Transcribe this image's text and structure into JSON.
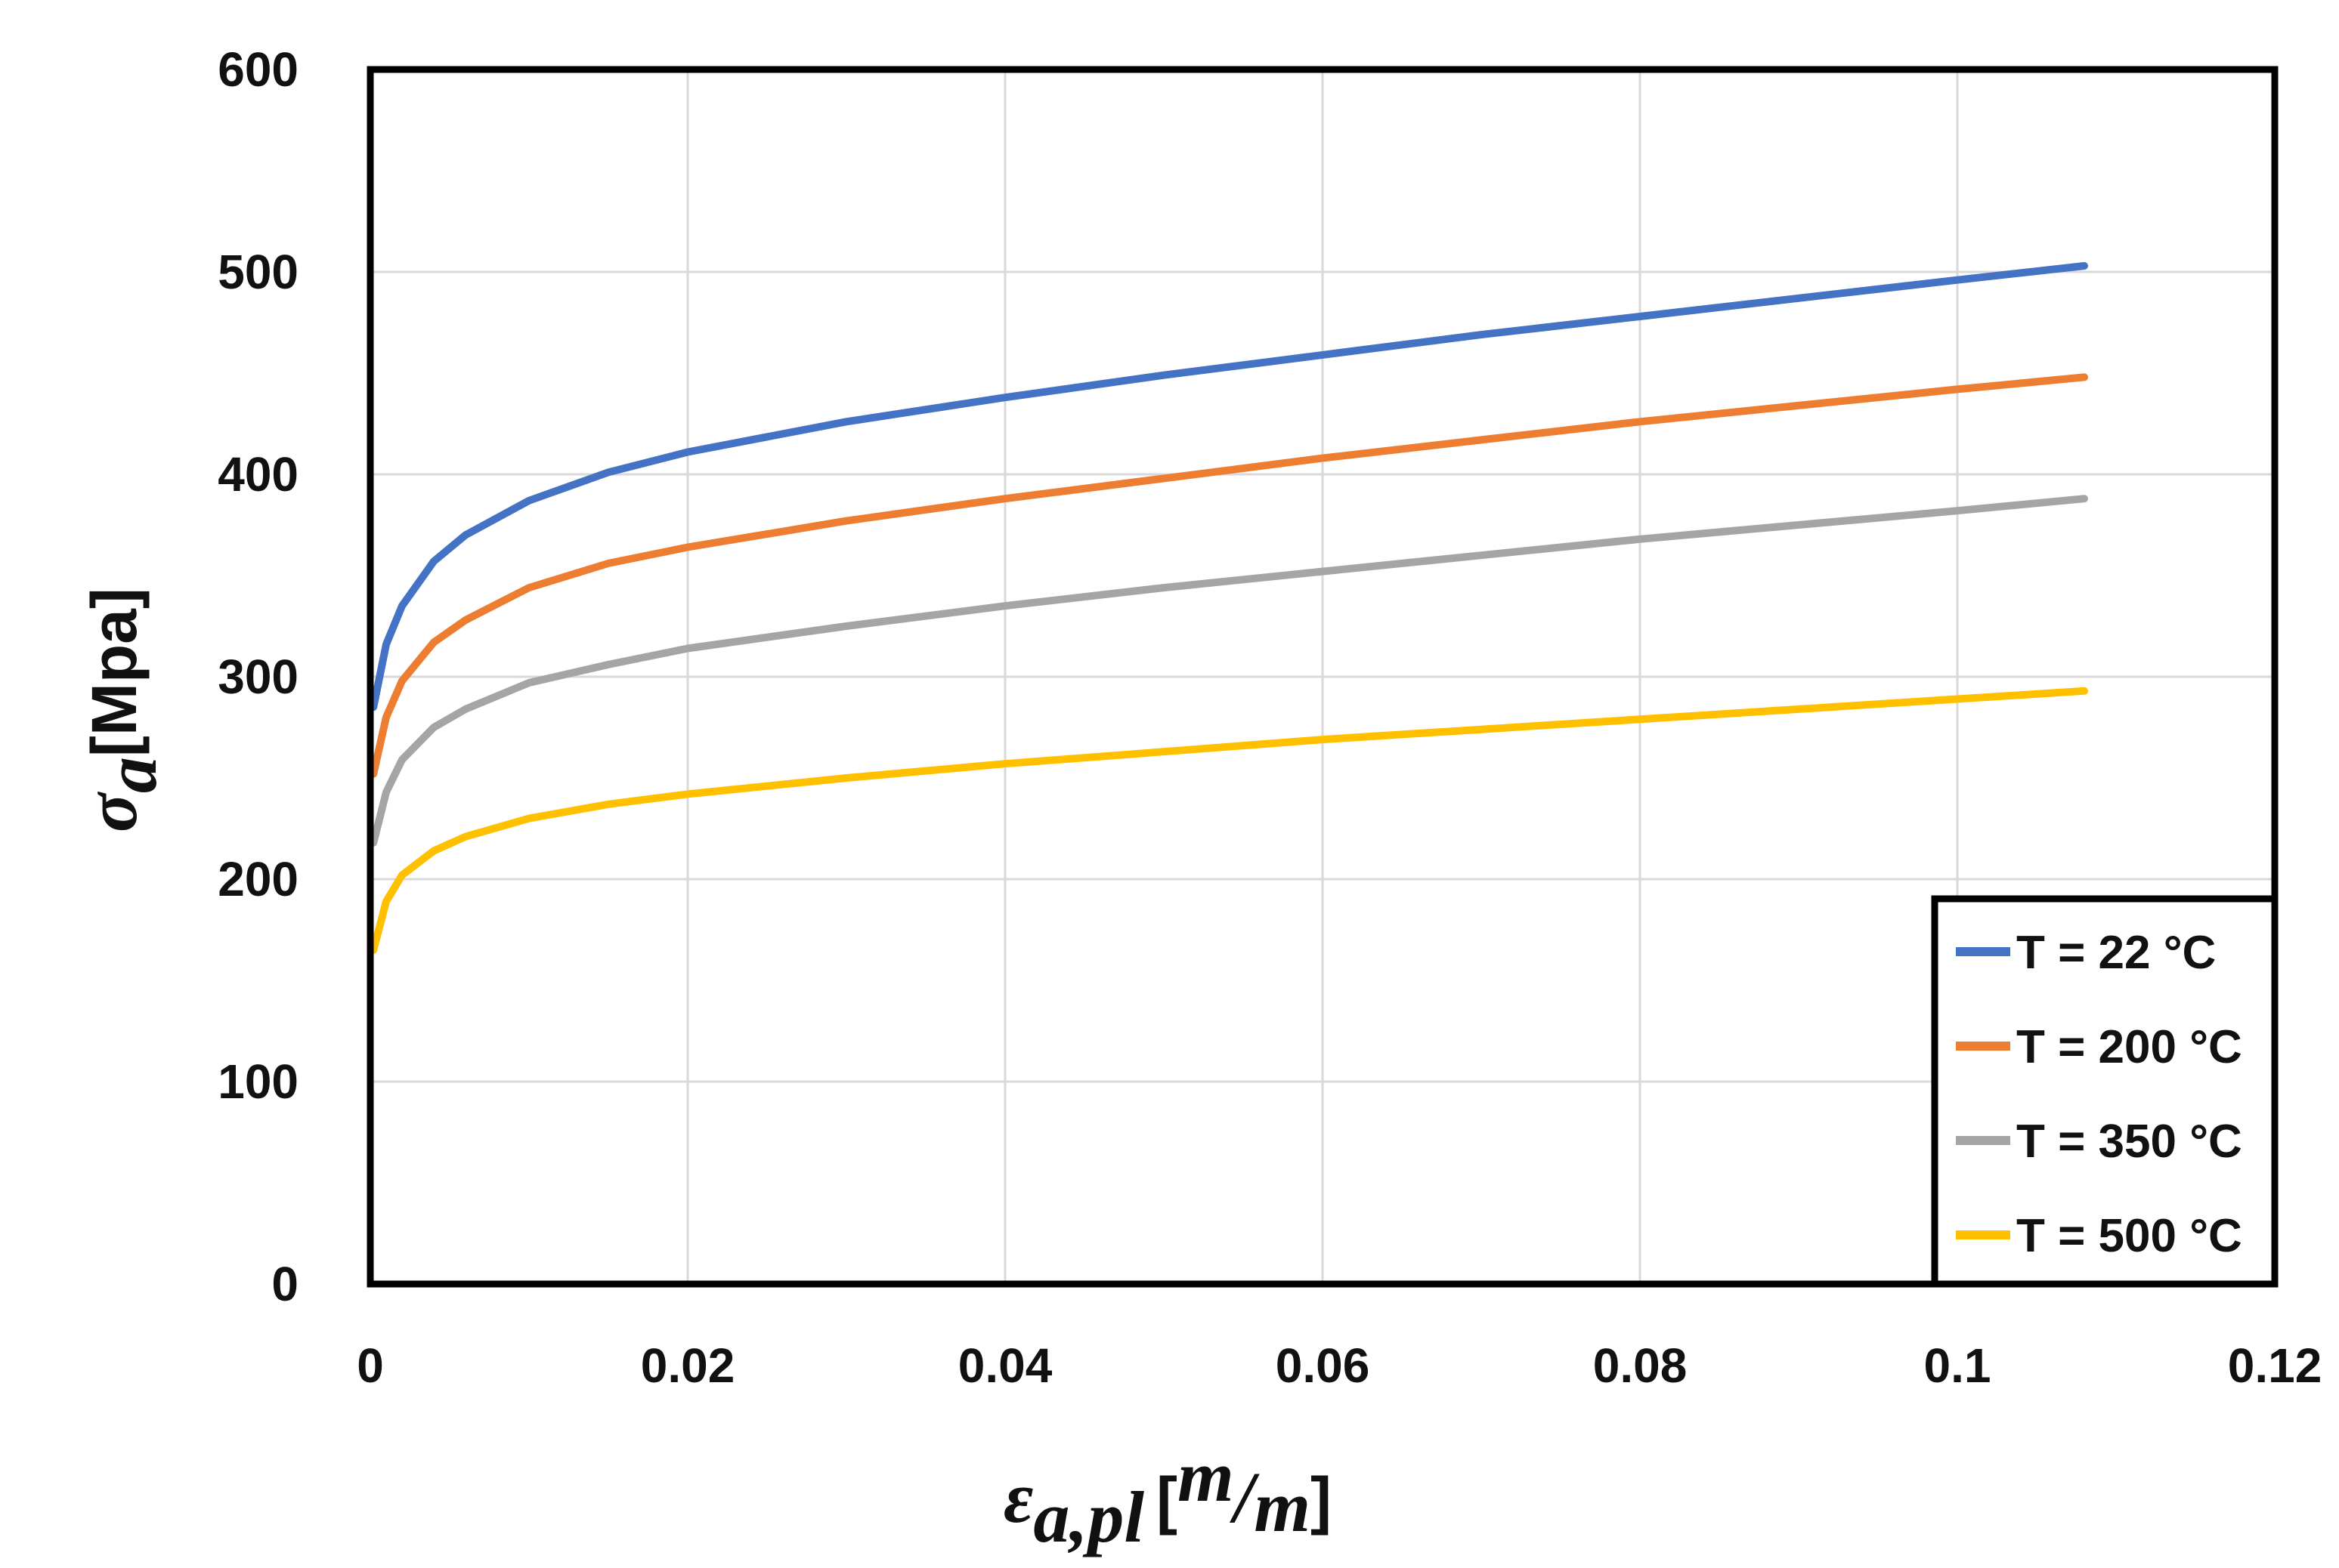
{
  "chart_data": {
    "type": "line",
    "title": "",
    "xlabel": {
      "symbol": "ε",
      "subscript": "a,pl",
      "unit_open": "[",
      "unit_num": "m",
      "unit_slash": "/",
      "unit_den": "m",
      "unit_close": "]"
    },
    "ylabel": {
      "symbol": "σ",
      "subscript": "a",
      "unit": "[Mpa]"
    },
    "xlim": [
      0,
      0.12
    ],
    "ylim": [
      0,
      600
    ],
    "xticks": [
      0,
      0.02,
      0.04,
      0.06,
      0.08,
      0.1,
      0.12
    ],
    "xtick_labels": [
      "0",
      "0.02",
      "0.04",
      "0.06",
      "0.08",
      "0.1",
      "0.12"
    ],
    "yticks": [
      0,
      100,
      200,
      300,
      400,
      500,
      600
    ],
    "ytick_labels": [
      "0",
      "100",
      "200",
      "300",
      "400",
      "500",
      "600"
    ],
    "grid": true,
    "legend_position": "bottom-right",
    "x": [
      0.0002,
      0.001,
      0.002,
      0.004,
      0.006,
      0.01,
      0.015,
      0.02,
      0.03,
      0.04,
      0.05,
      0.06,
      0.07,
      0.08,
      0.09,
      0.1,
      0.108
    ],
    "series": [
      {
        "name": "T = 22 °C",
        "color": "#4472C4",
        "values": [
          285,
          316,
          335,
          357,
          370,
          387,
          401,
          411,
          426,
          438,
          449,
          459,
          469,
          478,
          487,
          496,
          503
        ]
      },
      {
        "name": "T = 200 °C",
        "color": "#ED7D31",
        "values": [
          252,
          280,
          298,
          317,
          328,
          344,
          356,
          364,
          377,
          388,
          398,
          408,
          417,
          426,
          434,
          442,
          448
        ]
      },
      {
        "name": "T = 350 °C",
        "color": "#A5A5A5",
        "values": [
          218,
          243,
          259,
          275,
          284,
          297,
          306,
          314,
          325,
          335,
          344,
          352,
          360,
          368,
          375,
          382,
          388
        ]
      },
      {
        "name": "T = 500 °C",
        "color": "#FFC000",
        "values": [
          165,
          189,
          202,
          214,
          221,
          230,
          237,
          242,
          250,
          257,
          263,
          269,
          274,
          279,
          284,
          289,
          293
        ]
      }
    ]
  }
}
